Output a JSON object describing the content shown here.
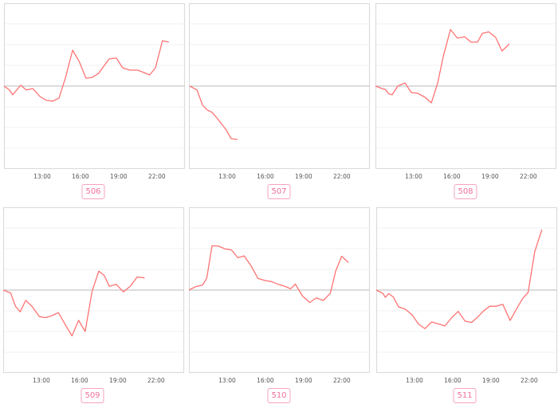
{
  "colors": {
    "line": "#ff7373",
    "baseline": "#c8c8c8",
    "grid": "#f2f2f2",
    "frame": "#dcdcdc",
    "badge": "#f06f9c"
  },
  "chart_data": [
    {
      "type": "line",
      "label": "506",
      "xlim": [
        "10:00",
        "24:12"
      ],
      "ylim": [
        -4,
        4
      ],
      "grid": true,
      "xticks": [
        "13:00",
        "16:00",
        "19:00",
        "22:00"
      ],
      "points": [
        [
          "10:00",
          0
        ],
        [
          "10:26",
          -0.19
        ],
        [
          "10:41",
          -0.42
        ],
        [
          "11:19",
          0.04
        ],
        [
          "11:45",
          -0.19
        ],
        [
          "12:15",
          -0.12
        ],
        [
          "12:49",
          -0.5
        ],
        [
          "13:19",
          -0.69
        ],
        [
          "13:49",
          -0.73
        ],
        [
          "14:19",
          -0.58
        ],
        [
          "14:49",
          0.38
        ],
        [
          "15:23",
          1.73
        ],
        [
          "15:56",
          1.15
        ],
        [
          "16:26",
          0.38
        ],
        [
          "16:56",
          0.42
        ],
        [
          "17:26",
          0.62
        ],
        [
          "18:15",
          1.31
        ],
        [
          "18:49",
          1.35
        ],
        [
          "19:19",
          0.88
        ],
        [
          "19:53",
          0.77
        ],
        [
          "20:30",
          0.77
        ],
        [
          "21:26",
          0.54
        ],
        [
          "21:53",
          0.88
        ],
        [
          "22:26",
          2.19
        ],
        [
          "22:56",
          2.12
        ]
      ]
    },
    {
      "type": "line",
      "label": "507",
      "xlim": [
        "10:00",
        "24:12"
      ],
      "ylim": [
        -4,
        4
      ],
      "grid": true,
      "xticks": [
        "13:00",
        "16:00",
        "19:00",
        "22:00"
      ],
      "points": [
        [
          "10:04",
          0
        ],
        [
          "10:38",
          -0.19
        ],
        [
          "11:04",
          -0.92
        ],
        [
          "11:26",
          -1.15
        ],
        [
          "11:49",
          -1.27
        ],
        [
          "12:15",
          -1.58
        ],
        [
          "12:53",
          -2.08
        ],
        [
          "13:19",
          -2.54
        ],
        [
          "13:49",
          -2.58
        ]
      ]
    },
    {
      "type": "line",
      "label": "508",
      "xlim": [
        "10:00",
        "24:12"
      ],
      "ylim": [
        -4,
        4
      ],
      "grid": true,
      "xticks": [
        "13:00",
        "16:00",
        "19:00",
        "22:00"
      ],
      "points": [
        [
          "10:00",
          0
        ],
        [
          "10:38",
          -0.15
        ],
        [
          "10:45",
          -0.15
        ],
        [
          "11:04",
          -0.38
        ],
        [
          "11:19",
          -0.42
        ],
        [
          "11:45",
          0
        ],
        [
          "12:19",
          0.15
        ],
        [
          "12:49",
          -0.31
        ],
        [
          "13:19",
          -0.35
        ],
        [
          "13:53",
          -0.54
        ],
        [
          "14:23",
          -0.81
        ],
        [
          "14:53",
          0.15
        ],
        [
          "15:19",
          1.42
        ],
        [
          "15:53",
          2.73
        ],
        [
          "16:26",
          2.31
        ],
        [
          "17:00",
          2.38
        ],
        [
          "17:30",
          2.12
        ],
        [
          "18:00",
          2.12
        ],
        [
          "18:23",
          2.54
        ],
        [
          "18:53",
          2.62
        ],
        [
          "19:26",
          2.35
        ],
        [
          "19:56",
          1.69
        ],
        [
          "20:30",
          2.04
        ]
      ]
    },
    {
      "type": "line",
      "label": "509",
      "xlim": [
        "10:00",
        "24:12"
      ],
      "ylim": [
        -4,
        4
      ],
      "grid": true,
      "xticks": [
        "13:00",
        "16:00",
        "19:00",
        "22:00"
      ],
      "points": [
        [
          "10:00",
          0
        ],
        [
          "10:35",
          -0.14
        ],
        [
          "10:58",
          -0.79
        ],
        [
          "11:20",
          -1.05
        ],
        [
          "11:46",
          -0.5
        ],
        [
          "12:16",
          -0.79
        ],
        [
          "12:50",
          -1.28
        ],
        [
          "13:20",
          -1.33
        ],
        [
          "13:50",
          -1.23
        ],
        [
          "14:20",
          -1.09
        ],
        [
          "14:55",
          -1.72
        ],
        [
          "15:24",
          -2.21
        ],
        [
          "15:55",
          -1.46
        ],
        [
          "16:26",
          -2.0
        ],
        [
          "16:59",
          -0.05
        ],
        [
          "17:30",
          0.91
        ],
        [
          "17:55",
          0.71
        ],
        [
          "18:20",
          0.18
        ],
        [
          "18:52",
          0.28
        ],
        [
          "19:26",
          -0.09
        ],
        [
          "19:58",
          0.18
        ],
        [
          "20:31",
          0.63
        ],
        [
          "21:06",
          0.59
        ]
      ]
    },
    {
      "type": "line",
      "label": "510",
      "xlim": [
        "10:00",
        "24:12"
      ],
      "ylim": [
        -4,
        4
      ],
      "grid": true,
      "xticks": [
        "13:00",
        "16:00",
        "19:00",
        "22:00"
      ],
      "points": [
        [
          "10:00",
          0
        ],
        [
          "10:33",
          0.17
        ],
        [
          "11:04",
          0.24
        ],
        [
          "11:24",
          0.58
        ],
        [
          "11:49",
          2.14
        ],
        [
          "12:20",
          2.12
        ],
        [
          "12:50",
          1.99
        ],
        [
          "13:20",
          1.94
        ],
        [
          "13:50",
          1.56
        ],
        [
          "14:20",
          1.65
        ],
        [
          "14:54",
          1.15
        ],
        [
          "15:25",
          0.56
        ],
        [
          "15:58",
          0.46
        ],
        [
          "16:28",
          0.41
        ],
        [
          "17:00",
          0.28
        ],
        [
          "17:30",
          0.19
        ],
        [
          "17:59",
          0.06
        ],
        [
          "18:21",
          0.29
        ],
        [
          "18:55",
          -0.29
        ],
        [
          "19:29",
          -0.6
        ],
        [
          "19:59",
          -0.38
        ],
        [
          "20:33",
          -0.5
        ],
        [
          "21:06",
          -0.15
        ],
        [
          "21:31",
          0.91
        ],
        [
          "21:59",
          1.63
        ],
        [
          "22:31",
          1.33
        ]
      ]
    },
    {
      "type": "line",
      "label": "511",
      "xlim": [
        "10:00",
        "24:12"
      ],
      "ylim": [
        -4,
        4
      ],
      "grid": true,
      "xticks": [
        "13:00",
        "16:00",
        "19:00",
        "22:00"
      ],
      "points": [
        [
          "10:00",
          0
        ],
        [
          "10:30",
          -0.15
        ],
        [
          "10:43",
          -0.35
        ],
        [
          "10:59",
          -0.17
        ],
        [
          "11:20",
          -0.33
        ],
        [
          "11:45",
          -0.81
        ],
        [
          "12:16",
          -0.92
        ],
        [
          "12:48",
          -1.19
        ],
        [
          "13:19",
          -1.64
        ],
        [
          "13:49",
          -1.86
        ],
        [
          "14:21",
          -1.54
        ],
        [
          "14:54",
          -1.64
        ],
        [
          "15:23",
          -1.73
        ],
        [
          "15:55",
          -1.33
        ],
        [
          "16:26",
          -1.03
        ],
        [
          "16:58",
          -1.5
        ],
        [
          "17:29",
          -1.56
        ],
        [
          "17:56",
          -1.32
        ],
        [
          "18:25",
          -1.01
        ],
        [
          "18:54",
          -0.78
        ],
        [
          "19:25",
          -0.78
        ],
        [
          "19:56",
          -0.69
        ],
        [
          "20:30",
          -1.47
        ],
        [
          "21:01",
          -0.9
        ],
        [
          "21:29",
          -0.41
        ],
        [
          "21:55",
          -0.12
        ],
        [
          "22:26",
          1.85
        ],
        [
          "23:00",
          2.92
        ]
      ]
    }
  ]
}
